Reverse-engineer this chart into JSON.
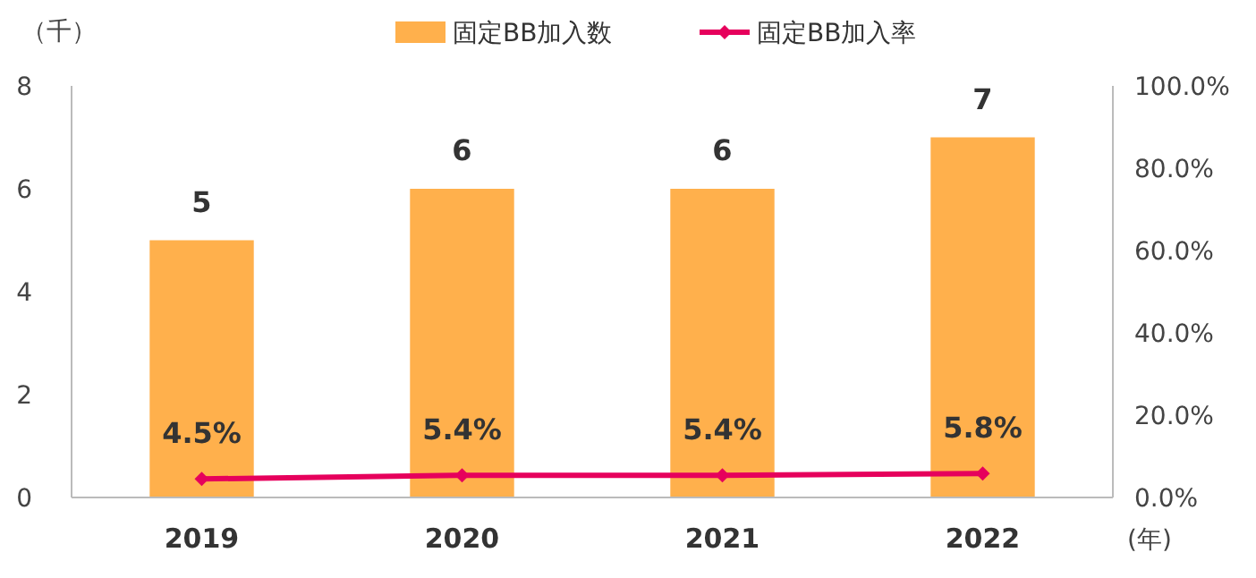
{
  "chart_data": {
    "type": "bar",
    "categories": [
      "2019",
      "2020",
      "2021",
      "2022"
    ],
    "ylabel": "（千）",
    "xlabel": "(年)",
    "ylim": [
      0,
      8
    ],
    "yticks": [
      0,
      2,
      4,
      6,
      8
    ],
    "y2lim": [
      0,
      100
    ],
    "y2ticks": [
      {
        "value": 0,
        "label": "0.0%"
      },
      {
        "value": 20,
        "label": "20.0%"
      },
      {
        "value": 40,
        "label": "40.0%"
      },
      {
        "value": 60,
        "label": "60.0%"
      },
      {
        "value": 80,
        "label": "80.0%"
      },
      {
        "value": 100,
        "label": "100.0%"
      }
    ],
    "legend": "top",
    "marker": "diamond",
    "grid": false,
    "series": [
      {
        "name": "固定BB加入数",
        "color": "#ffb04c",
        "values": [
          5,
          6,
          6,
          7
        ],
        "value_labels": [
          "5",
          "6",
          "6",
          "7"
        ]
      },
      {
        "name": "固定BB加入率",
        "type": "line",
        "axis": "y2",
        "color": "#e6005c",
        "values": [
          4.5,
          5.4,
          5.4,
          5.8
        ],
        "value_labels": [
          "4.5%",
          "5.4%",
          "5.4%",
          "5.8%"
        ]
      }
    ]
  }
}
